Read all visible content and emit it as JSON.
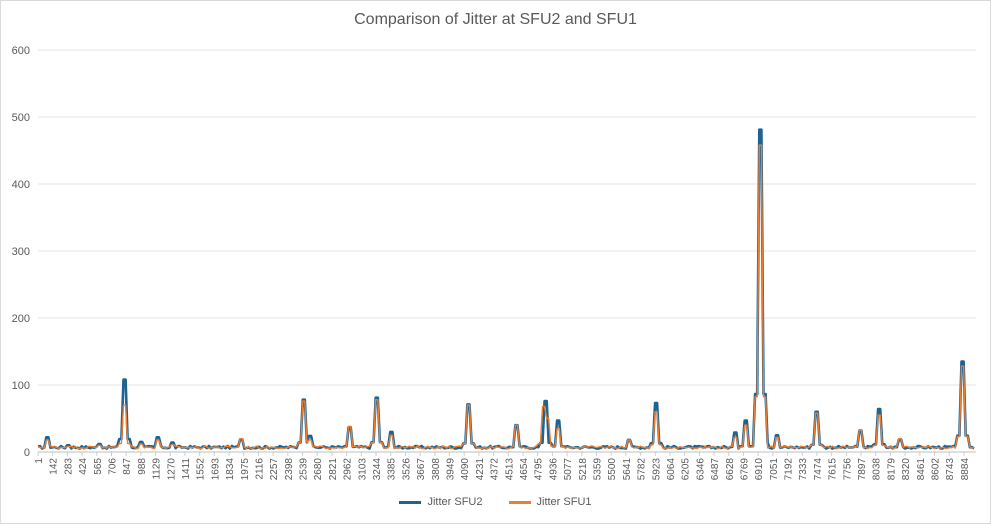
{
  "chart_data": {
    "type": "line",
    "title": "Comparison of Jitter at SFU2 and SFU1",
    "xlabel": "",
    "ylabel": "",
    "ylim": [
      0,
      600
    ],
    "yticks": [
      "0",
      "100",
      "200",
      "300",
      "400",
      "500",
      "600"
    ],
    "xlim": [
      1,
      9000
    ],
    "xticks": [
      1,
      142,
      283,
      424,
      565,
      706,
      847,
      988,
      1129,
      1270,
      1411,
      1552,
      1693,
      1834,
      1975,
      2116,
      2257,
      2398,
      2539,
      2680,
      2821,
      2962,
      3103,
      3244,
      3385,
      3526,
      3667,
      3808,
      3949,
      4090,
      4231,
      4372,
      4513,
      4654,
      4795,
      4936,
      5077,
      5218,
      5359,
      5500,
      5641,
      5782,
      5923,
      6064,
      6205,
      6346,
      6487,
      6628,
      6769,
      6910,
      7051,
      7192,
      7333,
      7474,
      7615,
      7756,
      7897,
      8038,
      8179,
      8320,
      8461,
      8602,
      8743,
      8884
    ],
    "grid": true,
    "legend": "bottom",
    "baseline": 5,
    "series": [
      {
        "name": "Jitter SFU2",
        "color": "#1f6391",
        "peaks": [
          [
            100,
            22
          ],
          [
            300,
            10
          ],
          [
            600,
            12
          ],
          [
            830,
            108
          ],
          [
            1000,
            15
          ],
          [
            1150,
            22
          ],
          [
            1300,
            14
          ],
          [
            1950,
            19
          ],
          [
            2560,
            78
          ],
          [
            2620,
            24
          ],
          [
            3000,
            37
          ],
          [
            3250,
            81
          ],
          [
            3400,
            30
          ],
          [
            4130,
            71
          ],
          [
            4600,
            40
          ],
          [
            4870,
            76
          ],
          [
            5000,
            47
          ],
          [
            5680,
            18
          ],
          [
            5930,
            73
          ],
          [
            6700,
            29
          ],
          [
            6790,
            47
          ],
          [
            6925,
            481
          ],
          [
            6950,
            77
          ],
          [
            7100,
            25
          ],
          [
            7480,
            60
          ],
          [
            7900,
            32
          ],
          [
            8080,
            64
          ],
          [
            8280,
            19
          ],
          [
            8870,
            135
          ]
        ]
      },
      {
        "name": "Jitter SFU1",
        "color": "#ed7d31",
        "peaks": [
          [
            100,
            18
          ],
          [
            300,
            8
          ],
          [
            600,
            10
          ],
          [
            830,
            70
          ],
          [
            1000,
            12
          ],
          [
            1150,
            18
          ],
          [
            1300,
            11
          ],
          [
            1950,
            20
          ],
          [
            2560,
            76
          ],
          [
            2620,
            18
          ],
          [
            3000,
            38
          ],
          [
            3250,
            78
          ],
          [
            3400,
            25
          ],
          [
            4130,
            70
          ],
          [
            4600,
            40
          ],
          [
            4850,
            68
          ],
          [
            4900,
            50
          ],
          [
            5000,
            35
          ],
          [
            5680,
            18
          ],
          [
            5930,
            60
          ],
          [
            6700,
            22
          ],
          [
            6790,
            40
          ],
          [
            6925,
            458
          ],
          [
            7100,
            22
          ],
          [
            7480,
            58
          ],
          [
            7900,
            33
          ],
          [
            8080,
            55
          ],
          [
            8280,
            20
          ],
          [
            8870,
            128
          ]
        ]
      }
    ]
  }
}
